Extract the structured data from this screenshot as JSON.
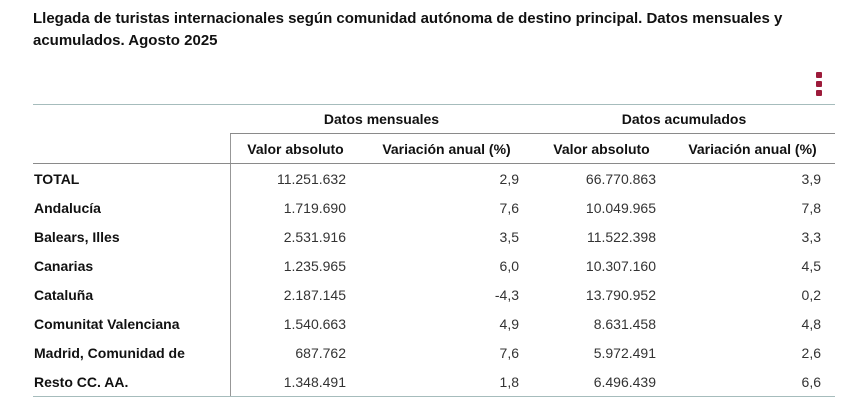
{
  "title": "Llegada de turistas internacionales según comunidad autónoma de destino principal. Datos mensuales y acumulados. Agosto 2025",
  "colors": {
    "accent": "#9d1b3a",
    "outer_border": "#a6bcbc",
    "inner_border": "#8a8a8a"
  },
  "menu": {
    "icon": "kebab-menu-icon"
  },
  "table": {
    "groups": [
      {
        "label": "Datos mensuales"
      },
      {
        "label": "Datos acumulados"
      }
    ],
    "columns": [
      "Valor absoluto",
      "Variación anual (%)",
      "Valor absoluto",
      "Variación anual (%)"
    ],
    "rows": [
      {
        "label": "TOTAL",
        "mensual_valor": "11.251.632",
        "mensual_variacion": "2,9",
        "acumulado_valor": "66.770.863",
        "acumulado_variacion": "3,9"
      },
      {
        "label": "Andalucía",
        "mensual_valor": "1.719.690",
        "mensual_variacion": "7,6",
        "acumulado_valor": "10.049.965",
        "acumulado_variacion": "7,8"
      },
      {
        "label": "Balears, Illes",
        "mensual_valor": "2.531.916",
        "mensual_variacion": "3,5",
        "acumulado_valor": "11.522.398",
        "acumulado_variacion": "3,3"
      },
      {
        "label": "Canarias",
        "mensual_valor": "1.235.965",
        "mensual_variacion": "6,0",
        "acumulado_valor": "10.307.160",
        "acumulado_variacion": "4,5"
      },
      {
        "label": "Cataluña",
        "mensual_valor": "2.187.145",
        "mensual_variacion": "-4,3",
        "acumulado_valor": "13.790.952",
        "acumulado_variacion": "0,2"
      },
      {
        "label": "Comunitat Valenciana",
        "mensual_valor": "1.540.663",
        "mensual_variacion": "4,9",
        "acumulado_valor": "8.631.458",
        "acumulado_variacion": "4,8"
      },
      {
        "label": "Madrid, Comunidad de",
        "mensual_valor": "687.762",
        "mensual_variacion": "7,6",
        "acumulado_valor": "5.972.491",
        "acumulado_variacion": "2,6"
      },
      {
        "label": "Resto CC. AA.",
        "mensual_valor": "1.348.491",
        "mensual_variacion": "1,8",
        "acumulado_valor": "6.496.439",
        "acumulado_variacion": "6,6"
      }
    ]
  }
}
